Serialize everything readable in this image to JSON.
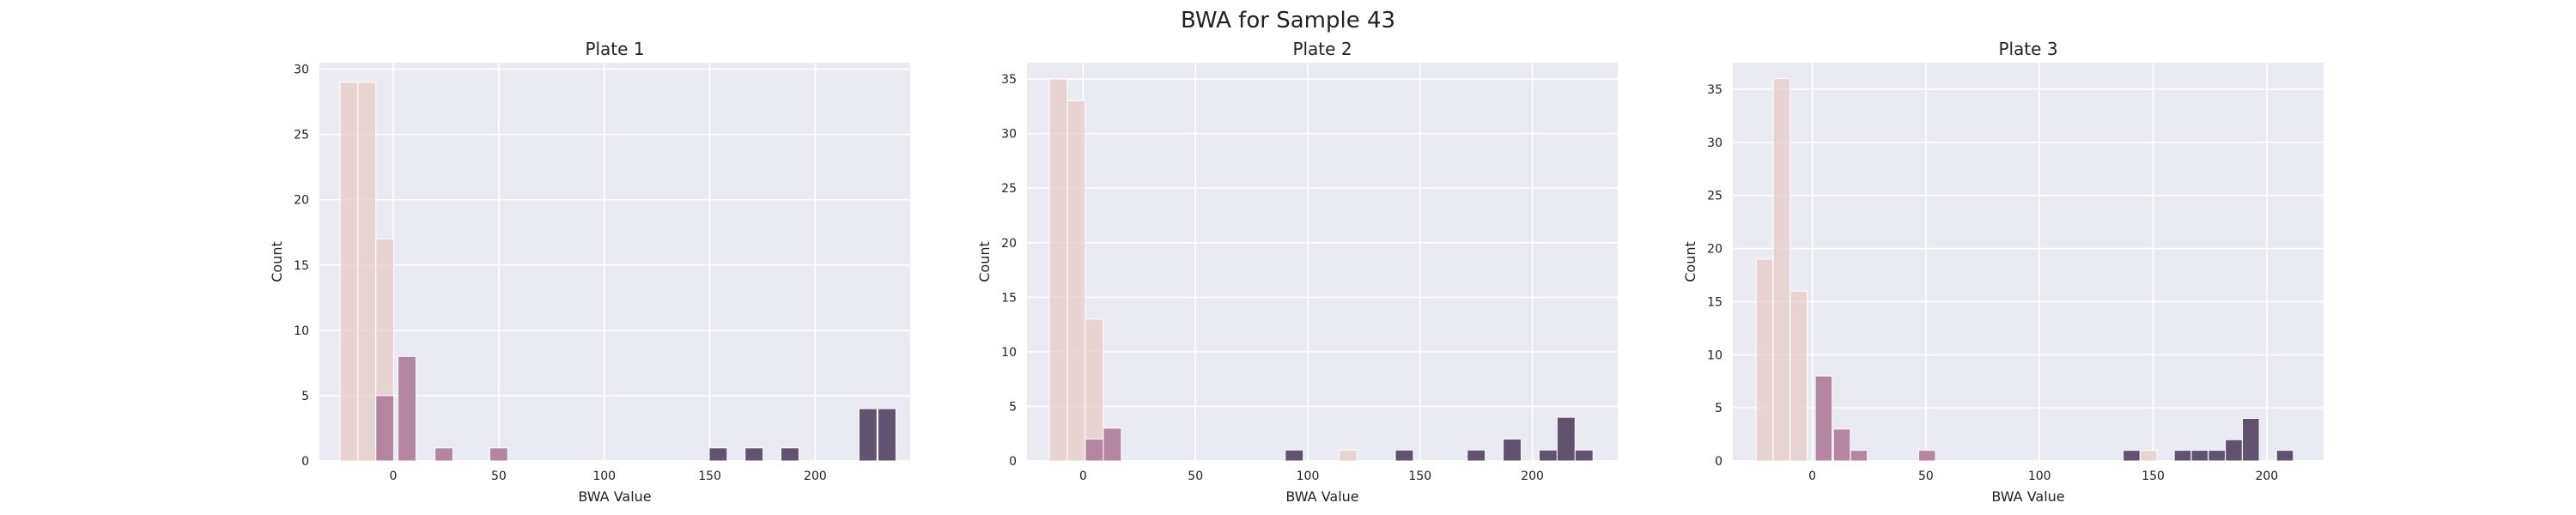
{
  "figure_title": "BWA for Sample 43",
  "colors": {
    "background": "#ffffff",
    "panel": "#eaeaf2",
    "grid": "#ffffff",
    "text": "#222222",
    "light": "#e7cbc8",
    "mid": "#b1819c",
    "dark": "#5a4a68"
  },
  "chart_data": [
    {
      "type": "bar",
      "title": "Plate 1",
      "xlabel": "BWA Value",
      "ylabel": "Count",
      "xlim": [
        -35,
        245
      ],
      "ylim": [
        0,
        30.5
      ],
      "xticks": [
        0,
        50,
        100,
        150,
        200
      ],
      "yticks": [
        0,
        5,
        10,
        15,
        20,
        25,
        30
      ],
      "grid": true,
      "bin_width": 8.5,
      "bars": [
        {
          "x": -21,
          "value": 29,
          "group": "light"
        },
        {
          "x": -12.5,
          "value": 29,
          "group": "light"
        },
        {
          "x": -4,
          "value": 17,
          "group": "light"
        },
        {
          "x": -4,
          "value": 5,
          "group": "mid"
        },
        {
          "x": 6.5,
          "value": 8,
          "group": "mid"
        },
        {
          "x": 24,
          "value": 1,
          "group": "mid"
        },
        {
          "x": 50,
          "value": 1,
          "group": "mid"
        },
        {
          "x": 154,
          "value": 1,
          "group": "dark"
        },
        {
          "x": 171,
          "value": 1,
          "group": "dark"
        },
        {
          "x": 188,
          "value": 1,
          "group": "dark"
        },
        {
          "x": 225,
          "value": 4,
          "group": "dark"
        },
        {
          "x": 234,
          "value": 4,
          "group": "dark"
        }
      ]
    },
    {
      "type": "bar",
      "title": "Plate 2",
      "xlabel": "BWA Value",
      "ylabel": "Count",
      "xlim": [
        -25,
        238
      ],
      "ylim": [
        0,
        36.5
      ],
      "xticks": [
        0,
        50,
        100,
        150,
        200
      ],
      "yticks": [
        0,
        5,
        10,
        15,
        20,
        25,
        30,
        35
      ],
      "grid": true,
      "bin_width": 8,
      "bars": [
        {
          "x": -11,
          "value": 35,
          "group": "light"
        },
        {
          "x": -3,
          "value": 33,
          "group": "light"
        },
        {
          "x": 5,
          "value": 13,
          "group": "light"
        },
        {
          "x": 5,
          "value": 2,
          "group": "mid"
        },
        {
          "x": 13,
          "value": 3,
          "group": "mid"
        },
        {
          "x": 94,
          "value": 1,
          "group": "dark"
        },
        {
          "x": 118,
          "value": 1,
          "group": "light"
        },
        {
          "x": 143,
          "value": 1,
          "group": "dark"
        },
        {
          "x": 175,
          "value": 1,
          "group": "dark"
        },
        {
          "x": 191,
          "value": 2,
          "group": "dark"
        },
        {
          "x": 207,
          "value": 1,
          "group": "dark"
        },
        {
          "x": 215,
          "value": 4,
          "group": "dark"
        },
        {
          "x": 223,
          "value": 1,
          "group": "dark"
        }
      ]
    },
    {
      "type": "bar",
      "title": "Plate 3",
      "xlabel": "BWA Value",
      "ylabel": "Count",
      "xlim": [
        -35,
        225
      ],
      "ylim": [
        0,
        37.5
      ],
      "xticks": [
        0,
        50,
        100,
        150,
        200
      ],
      "yticks": [
        0,
        5,
        10,
        15,
        20,
        25,
        30,
        35
      ],
      "grid": true,
      "bin_width": 7.4,
      "bars": [
        {
          "x": -21,
          "value": 19,
          "group": "light"
        },
        {
          "x": -13.5,
          "value": 36,
          "group": "light"
        },
        {
          "x": -6,
          "value": 16,
          "group": "light"
        },
        {
          "x": 5,
          "value": 8,
          "group": "mid"
        },
        {
          "x": 13,
          "value": 3,
          "group": "mid"
        },
        {
          "x": 20.5,
          "value": 1,
          "group": "mid"
        },
        {
          "x": 50.5,
          "value": 1,
          "group": "mid"
        },
        {
          "x": 140.5,
          "value": 1,
          "group": "dark"
        },
        {
          "x": 148,
          "value": 1,
          "group": "light"
        },
        {
          "x": 163,
          "value": 1,
          "group": "dark"
        },
        {
          "x": 170.5,
          "value": 1,
          "group": "dark"
        },
        {
          "x": 178,
          "value": 1,
          "group": "dark"
        },
        {
          "x": 185.5,
          "value": 2,
          "group": "dark"
        },
        {
          "x": 193,
          "value": 4,
          "group": "dark"
        },
        {
          "x": 208,
          "value": 1,
          "group": "dark"
        }
      ]
    }
  ]
}
